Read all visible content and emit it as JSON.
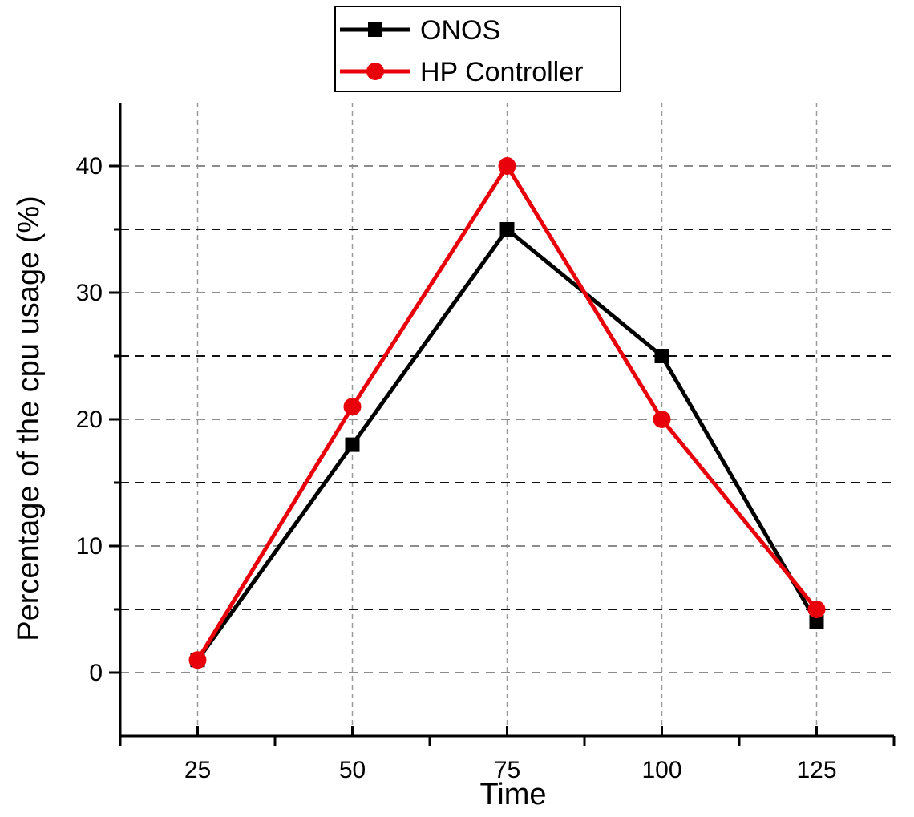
{
  "chart_data": {
    "type": "line",
    "title": "",
    "xlabel": "Time",
    "ylabel": "Percentage of the cpu usage (%)",
    "x": [
      25,
      50,
      75,
      100,
      125
    ],
    "xlim": [
      12.5,
      137.5
    ],
    "ylim": [
      -5,
      45
    ],
    "xticks": [
      25,
      50,
      75,
      100,
      125
    ],
    "yticks": [
      0,
      10,
      20,
      30,
      40
    ],
    "grid": true,
    "legend_position": "top",
    "series": [
      {
        "name": "ONOS",
        "values": [
          1,
          18,
          35,
          25,
          4
        ],
        "color": "#000000",
        "marker": "square"
      },
      {
        "name": "HP Controller",
        "values": [
          1,
          21,
          40,
          20,
          5
        ],
        "color": "#e8000b",
        "marker": "circle"
      }
    ]
  }
}
